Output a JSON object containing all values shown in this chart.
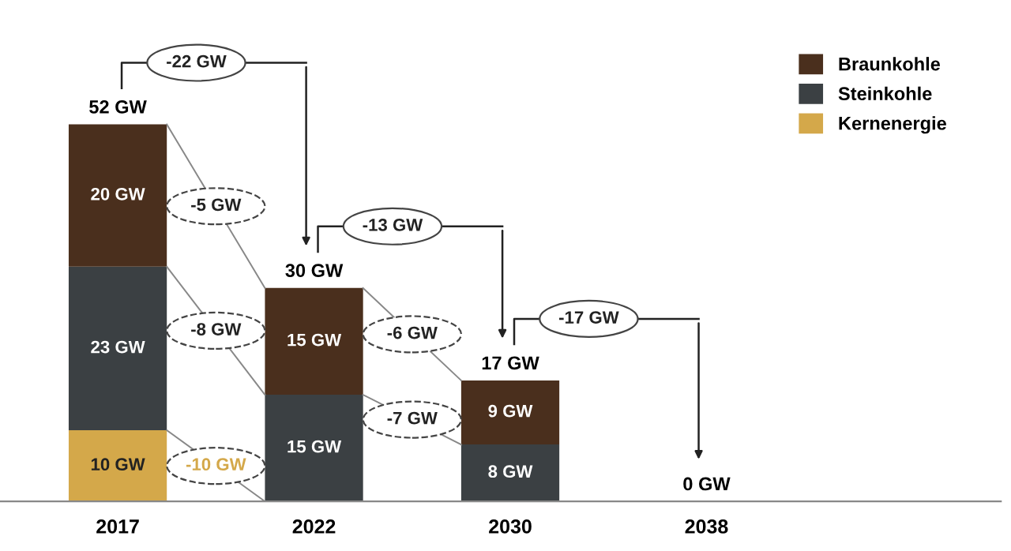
{
  "chart_data": {
    "type": "bar",
    "stacked": true,
    "categories": [
      "2017",
      "2022",
      "2030",
      "2038"
    ],
    "series": [
      {
        "name": "Kernenergie",
        "color": "#d4a84a",
        "values": [
          10,
          0,
          0,
          0
        ],
        "value_labels": [
          "10 GW",
          null,
          null,
          null
        ]
      },
      {
        "name": "Steinkohle",
        "color": "#3b4043",
        "values": [
          23,
          15,
          8,
          0
        ],
        "value_labels": [
          "23 GW",
          "15 GW",
          "8 GW",
          null
        ]
      },
      {
        "name": "Braunkohle",
        "color": "#4a2f1d",
        "values": [
          20,
          15,
          9,
          0
        ],
        "value_labels": [
          "20 GW",
          "15 GW",
          "9 GW",
          null
        ]
      }
    ],
    "totals": [
      "52 GW",
      "30 GW",
      "17 GW",
      "0 GW"
    ],
    "annotations": [
      "-22 GW",
      "-13 GW",
      "-17 GW",
      "-5 GW",
      "-8 GW",
      "-10 GW",
      "-6 GW",
      "-7 GW"
    ],
    "legend": "top right",
    "grid": false
  }
}
